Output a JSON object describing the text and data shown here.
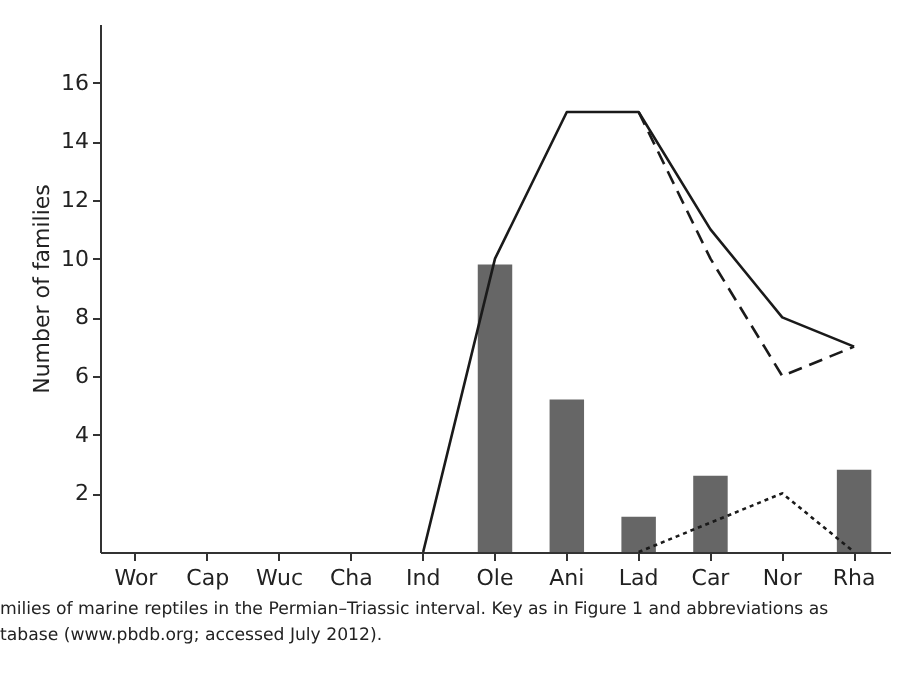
{
  "chart_data": {
    "type": "bar",
    "ylabel": "Number of families",
    "categories": [
      "Wor",
      "Cap",
      "Wuc",
      "Cha",
      "Ind",
      "Ole",
      "Ani",
      "Lad",
      "Car",
      "Nor",
      "Rha"
    ],
    "series": [
      {
        "color": "#666666",
        "values": [
          null,
          null,
          null,
          null,
          null,
          9.8,
          5.2,
          1.2,
          2.6,
          null,
          2.8
        ]
      },
      {
        "type": "line",
        "color": "#1a1a1a",
        "line_style": "solid",
        "values": [
          null,
          null,
          null,
          null,
          0,
          10,
          15,
          15,
          11,
          8,
          7
        ]
      },
      {
        "type": "line",
        "color": "#1a1a1a",
        "line_style": "dashed",
        "values": [
          null,
          null,
          null,
          null,
          null,
          null,
          null,
          15,
          10,
          6,
          7
        ]
      },
      {
        "type": "line",
        "color": "#1a1a1a",
        "line_style": "dotted",
        "values": [
          null,
          null,
          null,
          null,
          null,
          null,
          null,
          0,
          1,
          2,
          0
        ]
      }
    ],
    "ylim": [
      0,
      18
    ],
    "yticks": [
      2,
      4,
      6,
      8,
      10,
      12,
      14,
      16
    ],
    "grid": false,
    "annotations": [
      "milies of marine reptiles in the Permian–Triassic interval. Key as in Figure 1 and abbreviations as",
      "tabase (www.pbdb.org; accessed July 2012)."
    ]
  }
}
